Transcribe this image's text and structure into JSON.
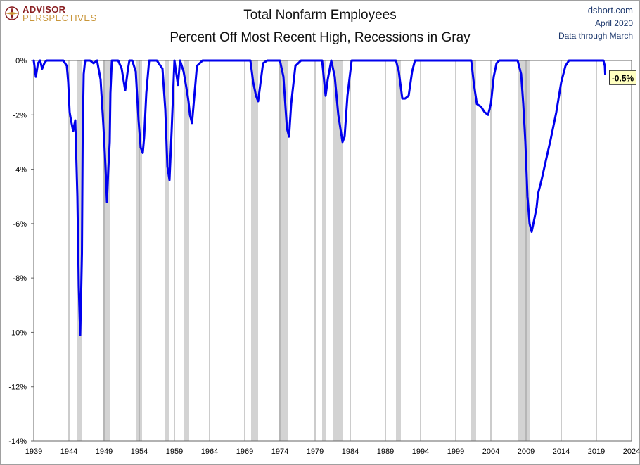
{
  "logo": {
    "line1": "ADVISOR",
    "line2": "PERSPECTIVES",
    "icon": "compass-icon",
    "colors": {
      "primary": "#8a1f22",
      "secondary": "#c9963a"
    }
  },
  "source": {
    "site": "dshort.com",
    "date": "April 2020",
    "note": "Data through March"
  },
  "chart_data": {
    "type": "line",
    "title": "Total Nonfarm Employees",
    "subtitle": "Percent Off Most Recent High, Recessions in Gray",
    "xlabel": "",
    "ylabel": "",
    "xlim": [
      1939,
      2024
    ],
    "ylim": [
      -14,
      0
    ],
    "x_ticks": [
      "1939",
      "1944",
      "1949",
      "1954",
      "1959",
      "1964",
      "1969",
      "1974",
      "1979",
      "1984",
      "1989",
      "1994",
      "1999",
      "2004",
      "2009",
      "2014",
      "2019",
      "2024"
    ],
    "y_ticks": [
      "0%",
      "-2%",
      "-4%",
      "-6%",
      "-8%",
      "-10%",
      "-12%",
      "-14%"
    ],
    "grid": {
      "vertical": true,
      "horizontal": false
    },
    "line_color": "#0000ee",
    "recession_color": "#d3d3d3",
    "recessions": [
      [
        1945.1,
        1945.8
      ],
      [
        1948.9,
        1949.8
      ],
      [
        1953.5,
        1954.4
      ],
      [
        1957.6,
        1958.3
      ],
      [
        1960.3,
        1961.1
      ],
      [
        1969.9,
        1970.9
      ],
      [
        1973.9,
        1975.2
      ],
      [
        1980.0,
        1980.5
      ],
      [
        1981.5,
        1982.9
      ],
      [
        1990.5,
        1991.2
      ],
      [
        2001.2,
        2001.9
      ],
      [
        2007.9,
        2009.5
      ]
    ],
    "series": [
      {
        "x": [
          1939.0,
          1939.3,
          1939.6,
          1939.9,
          1940.2,
          1940.5,
          1940.8,
          1941.2,
          1941.8,
          1942.5,
          1943.2,
          1943.7,
          1943.9,
          1944.1,
          1944.3,
          1944.6,
          1944.9,
          1945.2,
          1945.4,
          1945.6,
          1945.75,
          1945.85,
          1945.95,
          1946.1,
          1946.3,
          1946.5,
          1946.7,
          1947.0,
          1947.5,
          1948.0,
          1948.5,
          1948.9,
          1949.2,
          1949.4,
          1949.6,
          1949.8,
          1949.9,
          1950.1,
          1950.3,
          1950.5,
          1951.0,
          1951.5,
          1952.0,
          1952.4,
          1952.6,
          1953.0,
          1953.5,
          1953.9,
          1954.2,
          1954.5,
          1954.7,
          1955.0,
          1955.4,
          1955.8,
          1956.5,
          1957.3,
          1957.7,
          1958.0,
          1958.3,
          1958.6,
          1959.0,
          1959.5,
          1959.8,
          1960.3,
          1960.7,
          1961.0,
          1961.2,
          1961.5,
          1961.8,
          1962.2,
          1963.0,
          1965.0,
          1966.0,
          1968.0,
          1969.8,
          1970.2,
          1970.6,
          1970.9,
          1971.2,
          1971.6,
          1972.2,
          1973.5,
          1974.0,
          1974.5,
          1975.0,
          1975.3,
          1975.6,
          1976.2,
          1977.0,
          1979.5,
          1980.0,
          1980.3,
          1980.5,
          1980.8,
          1981.3,
          1981.8,
          1982.3,
          1982.9,
          1983.2,
          1983.6,
          1984.2,
          1990.5,
          1990.9,
          1991.4,
          1991.8,
          1992.3,
          1992.8,
          1993.2,
          1993.6,
          1998.0,
          2001.2,
          2001.6,
          2002.0,
          2002.6,
          2003.1,
          2003.6,
          2004.0,
          2004.4,
          2004.8,
          2005.2,
          2007.8,
          2008.3,
          2008.6,
          2008.9,
          2009.2,
          2009.5,
          2009.8,
          2010.2,
          2010.5,
          2010.7,
          2011.2,
          2011.8,
          2012.5,
          2013.3,
          2014.0,
          2014.6,
          2015.1,
          2016.0,
          2018.0,
          2020.0,
          2020.2,
          2020.25
        ],
        "y": [
          0,
          -0.6,
          -0.1,
          0,
          -0.3,
          -0.1,
          0,
          0,
          0,
          0,
          0,
          -0.2,
          -0.8,
          -1.9,
          -2.2,
          -2.6,
          -2.2,
          -5.0,
          -8.3,
          -10.1,
          -8.4,
          -7.1,
          -3.0,
          -0.5,
          0,
          0,
          0,
          0,
          -0.1,
          0,
          -0.7,
          -2.4,
          -3.9,
          -5.2,
          -4.0,
          -3.0,
          -1.2,
          0,
          0,
          0,
          0,
          -0.3,
          -1.1,
          -0.3,
          0,
          0,
          -0.4,
          -2.2,
          -3.2,
          -3.4,
          -2.8,
          -1.2,
          0,
          0,
          0,
          -0.3,
          -1.8,
          -3.9,
          -4.4,
          -2.6,
          0,
          -0.9,
          0,
          -0.4,
          -1.0,
          -1.5,
          -2.0,
          -2.3,
          -1.4,
          -0.2,
          0,
          0,
          0,
          0,
          0,
          -0.8,
          -1.3,
          -1.5,
          -0.9,
          -0.1,
          0,
          0,
          0,
          -0.6,
          -2.5,
          -2.8,
          -1.6,
          -0.2,
          0,
          0,
          0,
          -0.8,
          -1.3,
          -0.7,
          0,
          -0.6,
          -2.0,
          -3.0,
          -2.8,
          -1.3,
          0,
          0,
          -0.4,
          -1.4,
          -1.4,
          -1.3,
          -0.4,
          0,
          0,
          0,
          0,
          -0.9,
          -1.6,
          -1.7,
          -1.9,
          -2.0,
          -1.6,
          -0.6,
          -0.1,
          0,
          0,
          -0.5,
          -1.6,
          -3.0,
          -5.0,
          -6.0,
          -6.3,
          -5.8,
          -5.4,
          -4.9,
          -4.4,
          -3.7,
          -2.9,
          -1.9,
          -0.8,
          -0.2,
          0,
          0,
          0,
          0,
          -0.2,
          -0.5
        ]
      }
    ],
    "annotation": {
      "x": 2020.25,
      "y": -0.5,
      "text": "-0.5%"
    }
  }
}
